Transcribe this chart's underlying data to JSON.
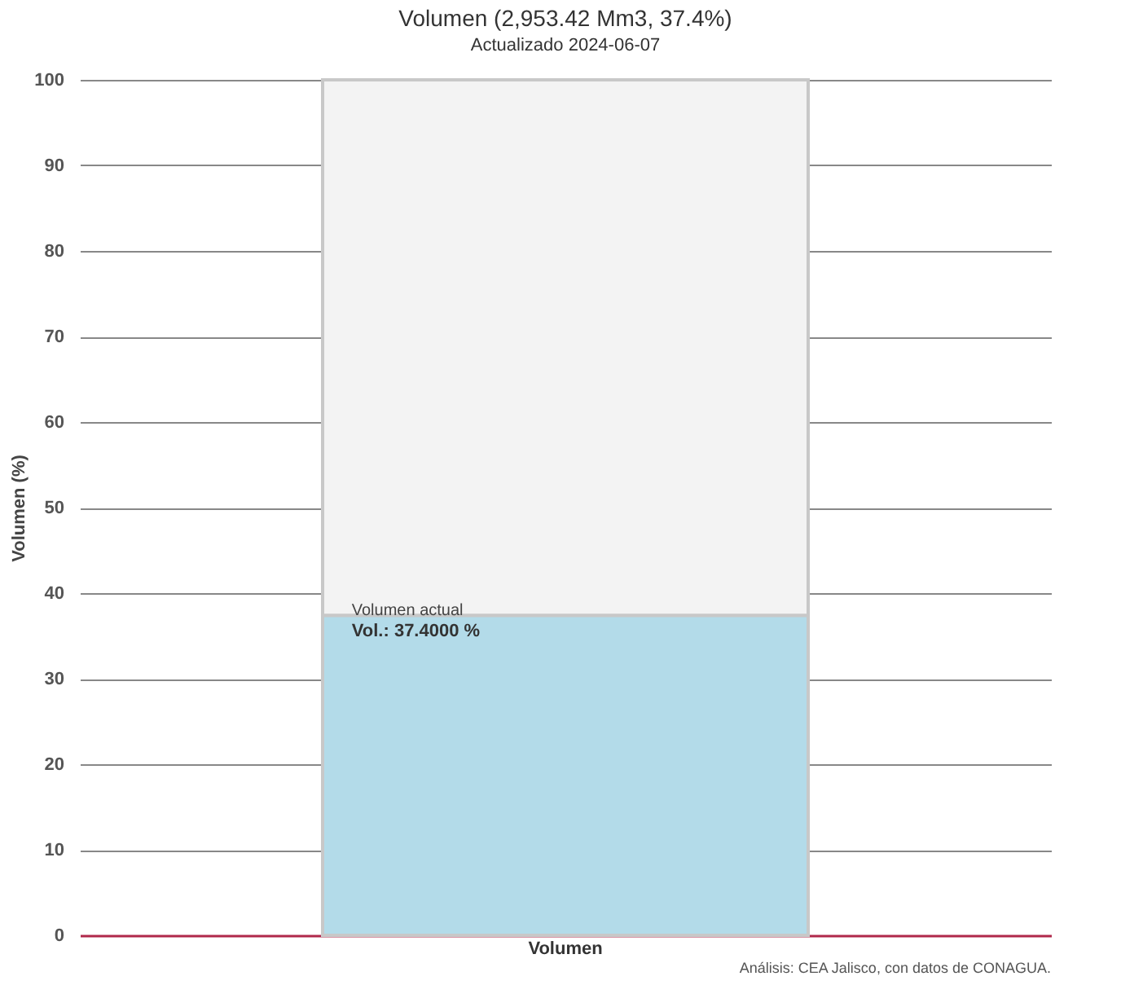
{
  "chart_data": {
    "type": "bar",
    "title": "Volumen (2,953.42 Mm3, 37.4%)",
    "subtitle": "Actualizado 2024-06-07",
    "ylabel": "Volumen (%)",
    "categories": [
      "Volumen"
    ],
    "stacked": true,
    "series": [
      {
        "name": "Volumen actual",
        "color": "#b3dbe9",
        "values": [
          37.4
        ],
        "value_labels": [
          "Vol.: 37.4000 %"
        ]
      },
      {
        "color": "#f3f3f3",
        "values": [
          62.6
        ]
      }
    ],
    "ylim": [
      0,
      100
    ],
    "yticks": [
      0,
      10,
      20,
      30,
      40,
      50,
      60,
      70,
      80,
      90,
      100
    ],
    "grid": "y",
    "legend": false,
    "annotations": [
      "Análisis: CEA Jalisco, con datos de CONAGUA."
    ]
  }
}
